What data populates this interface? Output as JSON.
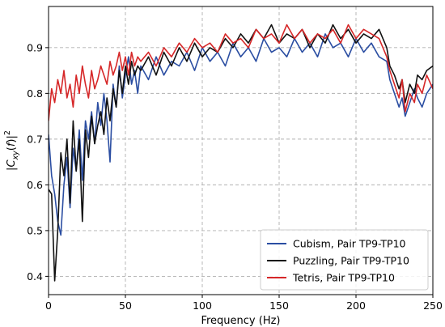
{
  "chart_data": {
    "type": "line",
    "xlabel": "Frequency (Hz)",
    "ylabel": "|C_xy(f)|^2",
    "xlim": [
      0,
      250
    ],
    "ylim": [
      0.36,
      0.99
    ],
    "x_ticks": [
      0,
      50,
      100,
      150,
      200,
      250
    ],
    "y_ticks": [
      0.4,
      0.5,
      0.6,
      0.7,
      0.8,
      0.9
    ],
    "x_tick_labels": [
      "0",
      "50",
      "100",
      "150",
      "200",
      "250"
    ],
    "y_tick_labels": [
      "0.4",
      "0.5",
      "0.6",
      "0.7",
      "0.8",
      "0.9"
    ],
    "grid": true,
    "legend_position": "bottom-right",
    "series": [
      {
        "name": "Cubism, Pair TP9-TP10",
        "color": "#2b4ea2",
        "x": [
          0,
          2,
          4,
          6,
          8,
          10,
          12,
          14,
          16,
          18,
          20,
          22,
          24,
          26,
          28,
          30,
          32,
          34,
          36,
          38,
          40,
          42,
          44,
          46,
          48,
          50,
          52,
          54,
          56,
          58,
          60,
          65,
          70,
          75,
          80,
          85,
          90,
          95,
          100,
          105,
          110,
          115,
          120,
          125,
          130,
          135,
          140,
          145,
          150,
          155,
          160,
          165,
          170,
          175,
          180,
          185,
          190,
          195,
          200,
          205,
          210,
          215,
          220,
          222,
          225,
          228,
          230,
          232,
          235,
          238,
          240,
          243,
          246,
          250
        ],
        "y": [
          0.71,
          0.62,
          0.58,
          0.52,
          0.49,
          0.6,
          0.66,
          0.55,
          0.68,
          0.63,
          0.72,
          0.61,
          0.74,
          0.7,
          0.76,
          0.69,
          0.78,
          0.73,
          0.8,
          0.74,
          0.65,
          0.82,
          0.77,
          0.86,
          0.79,
          0.84,
          0.88,
          0.82,
          0.85,
          0.8,
          0.86,
          0.83,
          0.88,
          0.84,
          0.87,
          0.86,
          0.89,
          0.85,
          0.9,
          0.87,
          0.89,
          0.86,
          0.91,
          0.88,
          0.9,
          0.87,
          0.92,
          0.89,
          0.9,
          0.88,
          0.92,
          0.89,
          0.91,
          0.88,
          0.93,
          0.9,
          0.91,
          0.88,
          0.92,
          0.89,
          0.91,
          0.88,
          0.87,
          0.83,
          0.8,
          0.77,
          0.79,
          0.75,
          0.78,
          0.81,
          0.79,
          0.77,
          0.8,
          0.82
        ]
      },
      {
        "name": "Puzzling, Pair TP9-TP10",
        "color": "#111111",
        "x": [
          0,
          2,
          4,
          6,
          8,
          10,
          12,
          14,
          16,
          18,
          20,
          22,
          24,
          26,
          28,
          30,
          32,
          34,
          36,
          38,
          40,
          42,
          44,
          46,
          48,
          50,
          52,
          54,
          56,
          58,
          60,
          65,
          70,
          75,
          80,
          85,
          90,
          95,
          100,
          105,
          110,
          115,
          120,
          125,
          130,
          135,
          140,
          145,
          150,
          155,
          160,
          165,
          170,
          175,
          180,
          185,
          190,
          195,
          200,
          205,
          210,
          215,
          220,
          222,
          225,
          228,
          230,
          232,
          235,
          238,
          240,
          243,
          246,
          250
        ],
        "y": [
          0.59,
          0.58,
          0.39,
          0.5,
          0.67,
          0.62,
          0.7,
          0.56,
          0.74,
          0.63,
          0.7,
          0.52,
          0.72,
          0.66,
          0.75,
          0.69,
          0.73,
          0.76,
          0.71,
          0.79,
          0.74,
          0.81,
          0.77,
          0.85,
          0.8,
          0.86,
          0.82,
          0.87,
          0.84,
          0.86,
          0.85,
          0.88,
          0.84,
          0.89,
          0.86,
          0.9,
          0.87,
          0.91,
          0.88,
          0.9,
          0.89,
          0.92,
          0.9,
          0.93,
          0.91,
          0.94,
          0.92,
          0.95,
          0.91,
          0.93,
          0.92,
          0.94,
          0.9,
          0.93,
          0.91,
          0.95,
          0.92,
          0.94,
          0.91,
          0.93,
          0.92,
          0.94,
          0.9,
          0.86,
          0.84,
          0.81,
          0.83,
          0.78,
          0.82,
          0.8,
          0.84,
          0.83,
          0.85,
          0.86
        ]
      },
      {
        "name": "Tetris, Pair TP9-TP10",
        "color": "#d62728",
        "x": [
          0,
          2,
          4,
          6,
          8,
          10,
          12,
          14,
          16,
          18,
          20,
          22,
          24,
          26,
          28,
          30,
          32,
          34,
          36,
          38,
          40,
          42,
          44,
          46,
          48,
          50,
          52,
          54,
          56,
          58,
          60,
          65,
          70,
          75,
          80,
          85,
          90,
          95,
          100,
          105,
          110,
          115,
          120,
          125,
          130,
          135,
          140,
          145,
          150,
          155,
          160,
          165,
          170,
          175,
          180,
          185,
          190,
          195,
          200,
          205,
          210,
          215,
          220,
          222,
          225,
          228,
          230,
          232,
          235,
          238,
          240,
          243,
          246,
          250
        ],
        "y": [
          0.74,
          0.81,
          0.78,
          0.83,
          0.8,
          0.85,
          0.79,
          0.82,
          0.77,
          0.84,
          0.8,
          0.86,
          0.82,
          0.79,
          0.85,
          0.81,
          0.83,
          0.86,
          0.84,
          0.82,
          0.87,
          0.84,
          0.86,
          0.89,
          0.85,
          0.88,
          0.84,
          0.89,
          0.86,
          0.88,
          0.87,
          0.89,
          0.86,
          0.9,
          0.88,
          0.91,
          0.89,
          0.92,
          0.9,
          0.91,
          0.89,
          0.93,
          0.91,
          0.92,
          0.9,
          0.94,
          0.92,
          0.93,
          0.91,
          0.95,
          0.92,
          0.94,
          0.91,
          0.93,
          0.92,
          0.94,
          0.91,
          0.95,
          0.92,
          0.94,
          0.93,
          0.92,
          0.88,
          0.85,
          0.82,
          0.79,
          0.83,
          0.76,
          0.8,
          0.78,
          0.82,
          0.8,
          0.84,
          0.81
        ]
      }
    ]
  }
}
